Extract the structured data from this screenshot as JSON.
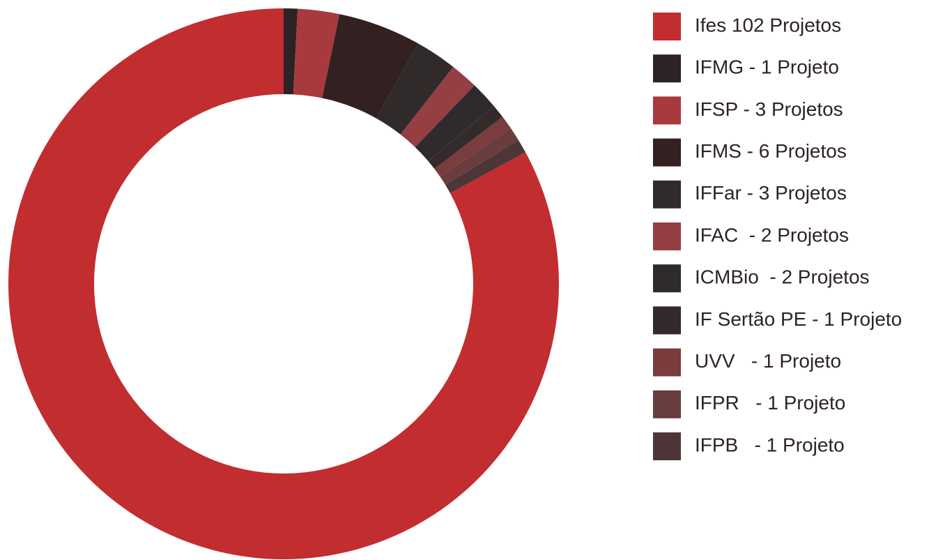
{
  "chart_data": {
    "type": "pie",
    "donut": true,
    "categories": [
      "Ifes 102 Projetos",
      "IFMG - 1 Projeto",
      "IFSP - 3 Projetos",
      "IFMS - 6 Projetos",
      "IFFar - 3 Projetos",
      "IFAC  - 2 Projetos",
      "ICMBio  - 2 Projetos",
      "IF Sertão PE - 1 Projeto",
      "UVV   - 1 Projeto",
      "IFPR   - 1 Projeto",
      "IFPB   - 1 Projeto"
    ],
    "values": [
      102,
      1,
      3,
      6,
      3,
      2,
      2,
      1,
      1,
      1,
      1
    ],
    "colors": [
      "#c22d30",
      "#2e2324",
      "#a83a3d",
      "#332021",
      "#302a2b",
      "#953f42",
      "#2f2b2c",
      "#342a2b",
      "#7a3c3d",
      "#693d3e",
      "#4e3638"
    ]
  }
}
